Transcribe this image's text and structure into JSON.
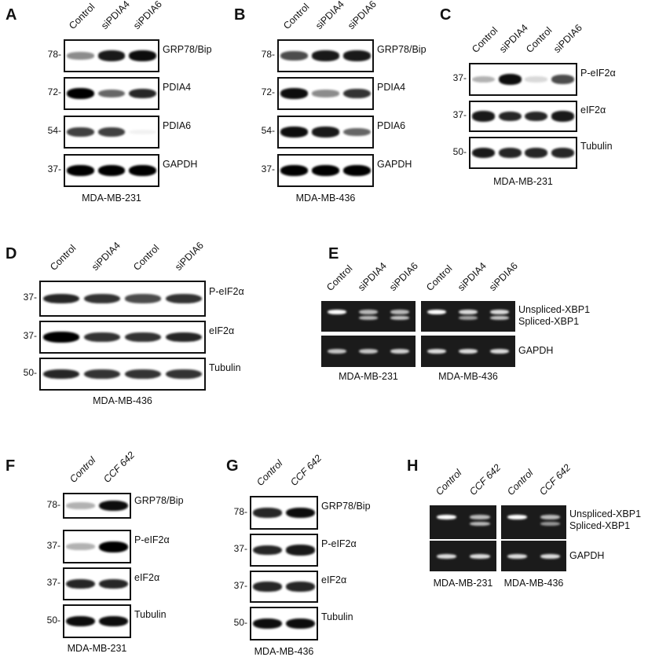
{
  "panels": [
    {
      "letter": "A",
      "type": "blot",
      "lanes": [
        "Control",
        "siPDIA4",
        "siPDIA6"
      ],
      "cell_line": "MDA-MB-231",
      "rows": [
        {
          "mw": "78-",
          "protein": "GRP78/Bip",
          "bands": [
            0.45,
            0.9,
            0.95
          ]
        },
        {
          "mw": "72-",
          "protein": "PDIA4",
          "bands": [
            1.0,
            0.6,
            0.85
          ]
        },
        {
          "mw": "54-",
          "protein": "PDIA6",
          "bands": [
            0.75,
            0.75,
            0.05
          ]
        },
        {
          "mw": "37-",
          "protein": "GAPDH",
          "bands": [
            1.0,
            1.0,
            1.0
          ]
        }
      ]
    },
    {
      "letter": "B",
      "type": "blot",
      "lanes": [
        "Control",
        "siPDIA4",
        "siPDIA6"
      ],
      "cell_line": "MDA-MB-436",
      "rows": [
        {
          "mw": "78-",
          "protein": "GRP78/Bip",
          "bands": [
            0.7,
            0.9,
            0.9
          ]
        },
        {
          "mw": "72-",
          "protein": "PDIA4",
          "bands": [
            0.95,
            0.45,
            0.8
          ]
        },
        {
          "mw": "54-",
          "protein": "PDIA6",
          "bands": [
            0.95,
            0.9,
            0.6
          ]
        },
        {
          "mw": "37-",
          "protein": "GAPDH",
          "bands": [
            1.0,
            1.0,
            1.0
          ]
        }
      ]
    },
    {
      "letter": "C",
      "type": "blot",
      "lanes": [
        "Control",
        "siPDIA4",
        "Control",
        "siPDIA6"
      ],
      "cell_line": "MDA-MB-231",
      "rows": [
        {
          "mw": "37-",
          "protein": "P-eIF2α",
          "bands": [
            0.3,
            0.95,
            0.15,
            0.7
          ]
        },
        {
          "mw": "37-",
          "protein": "eIF2α",
          "bands": [
            0.9,
            0.85,
            0.85,
            0.9
          ]
        },
        {
          "mw": "50-",
          "protein": "Tubulin",
          "bands": [
            0.9,
            0.85,
            0.85,
            0.85
          ]
        }
      ]
    },
    {
      "letter": "D",
      "type": "blot",
      "lanes": [
        "Control",
        "siPDIA4",
        "Control",
        "siPDIA6"
      ],
      "cell_line": "MDA-MB-436",
      "rows": [
        {
          "mw": "37-",
          "protein": "P-eIF2α",
          "bands": [
            0.85,
            0.8,
            0.7,
            0.8
          ]
        },
        {
          "mw": "37-",
          "protein": "eIF2α",
          "bands": [
            1.0,
            0.8,
            0.8,
            0.85
          ]
        },
        {
          "mw": "50-",
          "protein": "Tubulin",
          "bands": [
            0.85,
            0.8,
            0.8,
            0.8
          ]
        }
      ]
    },
    {
      "letter": "E",
      "type": "gel",
      "row_labels": [
        [
          "Unspliced-XBP1",
          "Spliced-XBP1"
        ],
        [
          "GAPDH"
        ]
      ],
      "groups": [
        {
          "lanes": [
            "Control",
            "siPDIA4",
            "siPDIA6"
          ],
          "cell_line": "MDA-MB-231",
          "rows": [
            [
              [
                1.0,
                0.0
              ],
              [
                0.7,
                0.7
              ],
              [
                0.7,
                0.75
              ]
            ],
            [
              [
                0.75
              ],
              [
                0.75
              ],
              [
                0.8
              ]
            ]
          ]
        },
        {
          "lanes": [
            "Control",
            "siPDIA4",
            "siPDIA6"
          ],
          "cell_line": "MDA-MB-436",
          "rows": [
            [
              [
                1.0,
                0.0
              ],
              [
                0.85,
                0.6
              ],
              [
                0.85,
                0.75
              ]
            ],
            [
              [
                0.85
              ],
              [
                0.85
              ],
              [
                0.85
              ]
            ]
          ]
        }
      ]
    },
    {
      "letter": "F",
      "type": "blot",
      "italic": true,
      "lanes": [
        "Control",
        "CCF 642"
      ],
      "cell_line": "MDA-MB-231",
      "rows": [
        {
          "mw": "78-",
          "protein": "GRP78/Bip",
          "bands": [
            0.3,
            0.95
          ]
        },
        {
          "mw": "37-",
          "protein": "P-eIF2α",
          "bands": [
            0.3,
            1.0
          ]
        },
        {
          "mw": "37-",
          "protein": "eIF2α",
          "bands": [
            0.85,
            0.85
          ]
        },
        {
          "mw": "50-",
          "protein": "Tubulin",
          "bands": [
            0.95,
            0.95
          ]
        }
      ]
    },
    {
      "letter": "G",
      "type": "blot",
      "italic": true,
      "lanes": [
        "Control",
        "CCF 642"
      ],
      "cell_line": "MDA-MB-436",
      "rows": [
        {
          "mw": "78-",
          "protein": "GRP78/Bip",
          "bands": [
            0.85,
            0.95
          ]
        },
        {
          "mw": "37-",
          "protein": "P-eIF2α",
          "bands": [
            0.85,
            0.9
          ]
        },
        {
          "mw": "37-",
          "protein": "eIF2α",
          "bands": [
            0.85,
            0.85
          ]
        },
        {
          "mw": "50-",
          "protein": "Tubulin",
          "bands": [
            0.95,
            0.95
          ]
        }
      ]
    },
    {
      "letter": "H",
      "type": "gel",
      "italic": true,
      "row_labels": [
        [
          "Unspliced-XBP1",
          "Spliced-XBP1"
        ],
        [
          "GAPDH"
        ]
      ],
      "groups": [
        {
          "lanes": [
            "Control",
            "CCF 642"
          ],
          "cell_line": "MDA-MB-231",
          "rows": [
            [
              [
                1.0,
                0.0
              ],
              [
                0.7,
                0.7
              ]
            ],
            [
              [
                0.85
              ],
              [
                0.85
              ]
            ]
          ]
        },
        {
          "lanes": [
            "Control",
            "CCF 642"
          ],
          "cell_line": "MDA-MB-436",
          "rows": [
            [
              [
                1.0,
                0.0
              ],
              [
                0.7,
                0.55
              ]
            ],
            [
              [
                0.85
              ],
              [
                0.85
              ]
            ]
          ]
        }
      ]
    }
  ]
}
